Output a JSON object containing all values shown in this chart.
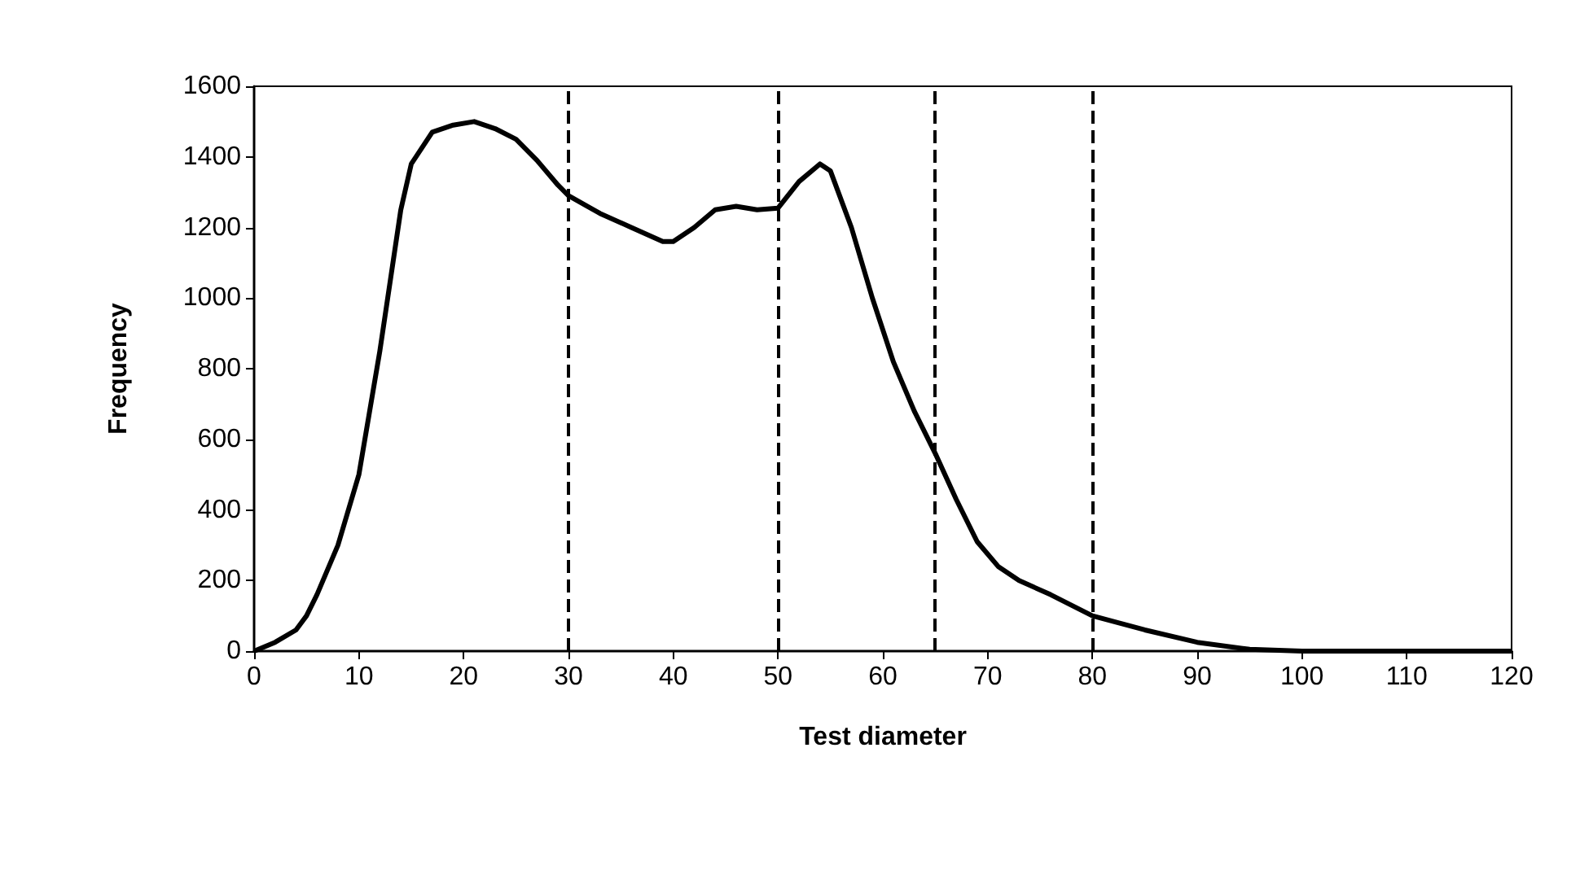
{
  "chart_data": {
    "type": "line",
    "xlabel": "Test diameter",
    "ylabel": "Frequency",
    "x": [
      0,
      2,
      4,
      5,
      6,
      8,
      10,
      12,
      14,
      15,
      17,
      19,
      21,
      23,
      25,
      27,
      29,
      30,
      33,
      36,
      39,
      40,
      42,
      44,
      46,
      48,
      50,
      52,
      54,
      55,
      57,
      59,
      61,
      63,
      65,
      67,
      69,
      71,
      73,
      76,
      80,
      85,
      90,
      95,
      100,
      120
    ],
    "series": [
      {
        "color": "#000000",
        "values": [
          0,
          25,
          60,
          100,
          160,
          300,
          500,
          850,
          1250,
          1380,
          1470,
          1490,
          1500,
          1480,
          1450,
          1390,
          1320,
          1290,
          1240,
          1200,
          1160,
          1160,
          1200,
          1250,
          1260,
          1250,
          1255,
          1330,
          1380,
          1360,
          1200,
          1000,
          820,
          680,
          560,
          430,
          310,
          240,
          200,
          160,
          100,
          60,
          25,
          5,
          0,
          0
        ]
      }
    ],
    "xlim": [
      0,
      120
    ],
    "xticks": [
      0,
      10,
      20,
      30,
      40,
      50,
      60,
      70,
      80,
      90,
      100,
      110,
      120
    ],
    "ylim": [
      0,
      1600
    ],
    "yticks": [
      0,
      200,
      400,
      600,
      800,
      1000,
      1200,
      1400,
      1600
    ],
    "ref_lines": [
      {
        "axis": "x",
        "value": 30,
        "line_style": "dashed",
        "color": "#000000"
      },
      {
        "axis": "x",
        "value": 50,
        "line_style": "dashed",
        "color": "#000000"
      },
      {
        "axis": "x",
        "value": 65,
        "line_style": "dashed",
        "color": "#000000"
      },
      {
        "axis": "x",
        "value": 80,
        "line_style": "dashed",
        "color": "#000000"
      }
    ],
    "grid": false,
    "marker": "none",
    "line_style": "solid"
  }
}
